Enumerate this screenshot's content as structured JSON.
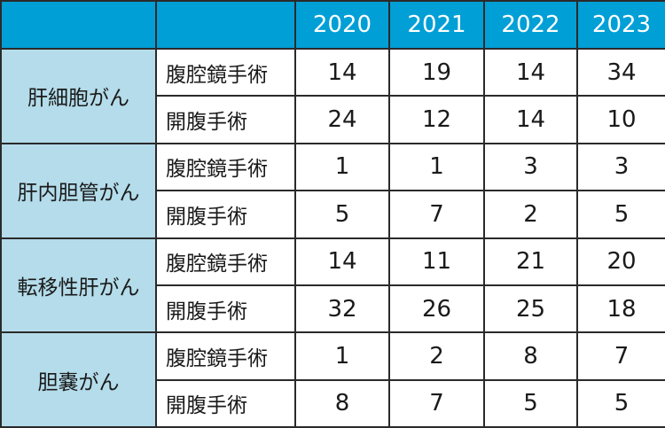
{
  "colors": {
    "header": "#009fd6",
    "category": "#b4dcea",
    "border": "#2a2a2a"
  },
  "chart_data": {
    "type": "table",
    "columns": [
      "",
      "",
      "2020",
      "2021",
      "2022",
      "2023"
    ],
    "groups": [
      {
        "name": "肝細胞がん",
        "rows": [
          {
            "label": "腹腔鏡手術",
            "values": [
              14,
              19,
              14,
              34
            ]
          },
          {
            "label": "開腹手術",
            "values": [
              24,
              12,
              14,
              10
            ]
          }
        ]
      },
      {
        "name": "肝内胆管がん",
        "rows": [
          {
            "label": "腹腔鏡手術",
            "values": [
              1,
              1,
              3,
              3
            ]
          },
          {
            "label": "開腹手術",
            "values": [
              5,
              7,
              2,
              5
            ]
          }
        ]
      },
      {
        "name": "転移性肝がん",
        "rows": [
          {
            "label": "腹腔鏡手術",
            "values": [
              14,
              11,
              21,
              20
            ]
          },
          {
            "label": "開腹手術",
            "values": [
              32,
              26,
              25,
              18
            ]
          }
        ]
      },
      {
        "name": "胆嚢がん",
        "rows": [
          {
            "label": "腹腔鏡手術",
            "values": [
              1,
              2,
              8,
              7
            ]
          },
          {
            "label": "開腹手術",
            "values": [
              8,
              7,
              5,
              5
            ]
          }
        ]
      }
    ]
  }
}
